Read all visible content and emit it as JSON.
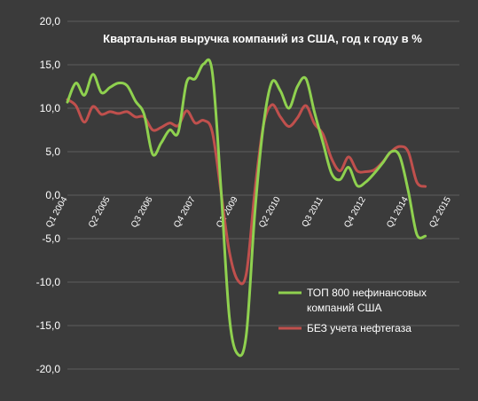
{
  "chart_data": {
    "type": "line",
    "title": "Квартальная выручка компаний из  США, год к году в %",
    "xlabel": "",
    "ylabel": "",
    "ylim": [
      -20,
      20
    ],
    "y_ticks": [
      "20,0",
      "15,0",
      "10,0",
      "5,0",
      "0,0",
      "-5,0",
      "-10,0",
      "-15,0",
      "-20,0"
    ],
    "y_tick_values": [
      20,
      15,
      10,
      5,
      0,
      -5,
      -10,
      -15,
      -20
    ],
    "x_tick_labels": [
      "Q1 2004",
      "Q2 2005",
      "Q3 2006",
      "Q4 2007",
      "Q1 2009",
      "Q2 2010",
      "Q3 2011",
      "Q4 2012",
      "Q1 2014",
      "Q2 2015"
    ],
    "x_tick_positions": [
      2004.0,
      2005.25,
      2006.5,
      2007.75,
      2009.0,
      2010.25,
      2011.5,
      2012.75,
      2014.0,
      2015.25
    ],
    "xlim": [
      2004.0,
      2015.5
    ],
    "grid": true,
    "legend_position": "bottom-right",
    "colors": {
      "background": "#3b3b3b",
      "grid": "#5e5e5e",
      "axis_text": "#ffffff"
    },
    "series": [
      {
        "name": "ТОП 800  нефинансовых компаний США",
        "color": "#8fd14f",
        "x": [
          2004.0,
          2004.25,
          2004.5,
          2004.75,
          2005.0,
          2005.25,
          2005.5,
          2005.75,
          2006.0,
          2006.25,
          2006.5,
          2006.75,
          2007.0,
          2007.25,
          2007.5,
          2007.75,
          2008.0,
          2008.25,
          2008.5,
          2008.75,
          2009.0,
          2009.25,
          2009.5,
          2009.75,
          2010.0,
          2010.25,
          2010.5,
          2010.75,
          2011.0,
          2011.25,
          2011.5,
          2011.75,
          2012.0,
          2012.25,
          2012.5,
          2012.75,
          2013.0,
          2013.25,
          2013.5,
          2013.75,
          2014.0,
          2014.25,
          2014.5,
          2014.75,
          2015.0,
          2015.25,
          2015.5
        ],
        "values": [
          10.7,
          12.9,
          11.5,
          13.9,
          11.8,
          12.4,
          12.9,
          12.6,
          10.8,
          9.3,
          4.7,
          6.0,
          7.5,
          7.2,
          13.0,
          13.4,
          15.1,
          14.2,
          1.0,
          -14.0,
          -18.3,
          -16.0,
          -2.0,
          8.0,
          13.0,
          12.0,
          10.0,
          12.5,
          13.4,
          9.5,
          6.0,
          2.5,
          1.8,
          3.2,
          1.1,
          1.5,
          2.5,
          3.7,
          5.0,
          4.5,
          0.5,
          -4.5,
          -4.7,
          null,
          null,
          null,
          null
        ]
      },
      {
        "name": "БЕЗ учета нефтегаза",
        "color": "#c0504d",
        "x": [
          2004.0,
          2004.25,
          2004.5,
          2004.75,
          2005.0,
          2005.25,
          2005.5,
          2005.75,
          2006.0,
          2006.25,
          2006.5,
          2006.75,
          2007.0,
          2007.25,
          2007.5,
          2007.75,
          2008.0,
          2008.25,
          2008.5,
          2008.75,
          2009.0,
          2009.25,
          2009.5,
          2009.75,
          2010.0,
          2010.25,
          2010.5,
          2010.75,
          2011.0,
          2011.25,
          2011.5,
          2011.75,
          2012.0,
          2012.25,
          2012.5,
          2012.75,
          2013.0,
          2013.25,
          2013.5,
          2013.75,
          2014.0,
          2014.25,
          2014.5,
          2014.75,
          2015.0,
          2015.25,
          2015.5
        ],
        "values": [
          11.0,
          10.3,
          8.4,
          10.2,
          9.3,
          9.6,
          9.4,
          9.6,
          9.0,
          9.0,
          7.5,
          7.8,
          8.3,
          8.0,
          9.7,
          8.3,
          8.6,
          7.3,
          0.5,
          -6.5,
          -9.8,
          -9.0,
          0.5,
          8.0,
          10.4,
          9.0,
          7.9,
          8.9,
          10.3,
          8.2,
          7.0,
          4.2,
          2.8,
          4.4,
          2.8,
          2.7,
          2.9,
          3.8,
          5.0,
          5.6,
          5.0,
          1.5,
          1.0,
          null,
          null,
          null,
          null
        ]
      }
    ]
  }
}
